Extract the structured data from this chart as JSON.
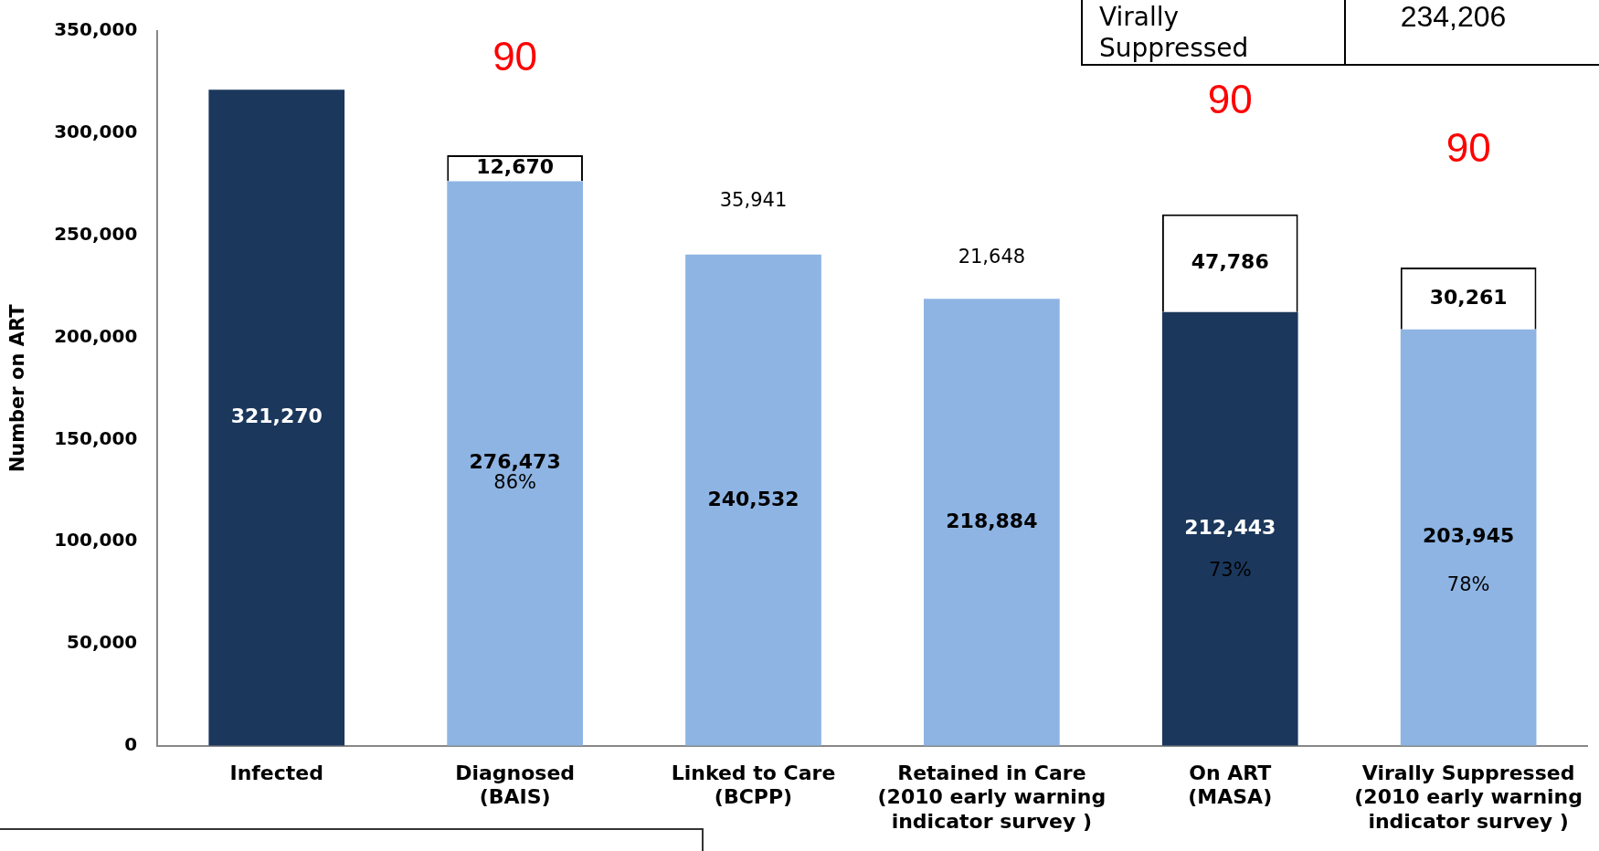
{
  "chart_data": {
    "type": "bar",
    "stacked": true,
    "ylabel": "Number on ART",
    "categories": [
      "Infected",
      "Diagnosed\n(BAIS)",
      "Linked to Care\n(BCPP)",
      "Retained in Care\n(2010 early warning\nindicator survey )",
      "On ART\n(MASA)",
      "Virally Suppressed\n(2010 early warning\nindicator survey )"
    ],
    "series": [
      {
        "colors": [
          "#1b375c",
          "#8eb4e3",
          "#8eb4e3",
          "#8eb4e3",
          "#1b375c",
          "#8eb4e3"
        ],
        "values": [
          321270,
          276473,
          240532,
          218884,
          212443,
          203945
        ],
        "value_labels": [
          "321,270",
          "276,473",
          "240,532",
          "218,884",
          "212,443",
          "203,945"
        ]
      },
      {
        "color": "#ffffff",
        "values": [
          null,
          12670,
          null,
          null,
          47786,
          30261
        ],
        "value_labels": [
          null,
          "12,670",
          null,
          null,
          "47,786",
          "30,261"
        ]
      }
    ],
    "ylim": [
      0,
      350000
    ],
    "yticks": [
      0,
      {
        "value": 50000,
        "label": "50,000"
      },
      {
        "value": 100000,
        "label": "100,000"
      },
      {
        "value": 150000,
        "label": "150,000"
      },
      {
        "value": 200000,
        "label": "200,000"
      },
      {
        "value": 250000,
        "label": "250,000"
      },
      {
        "value": 300000,
        "label": "300,000"
      },
      {
        "value": 350000,
        "label": "350,000"
      }
    ],
    "grid": false,
    "legend": false,
    "annotations": [
      "Virally\nSuppressed",
      "234,206",
      "90",
      "90",
      "90",
      "35,941",
      "21,648",
      "86%",
      "73%",
      "78%"
    ]
  }
}
